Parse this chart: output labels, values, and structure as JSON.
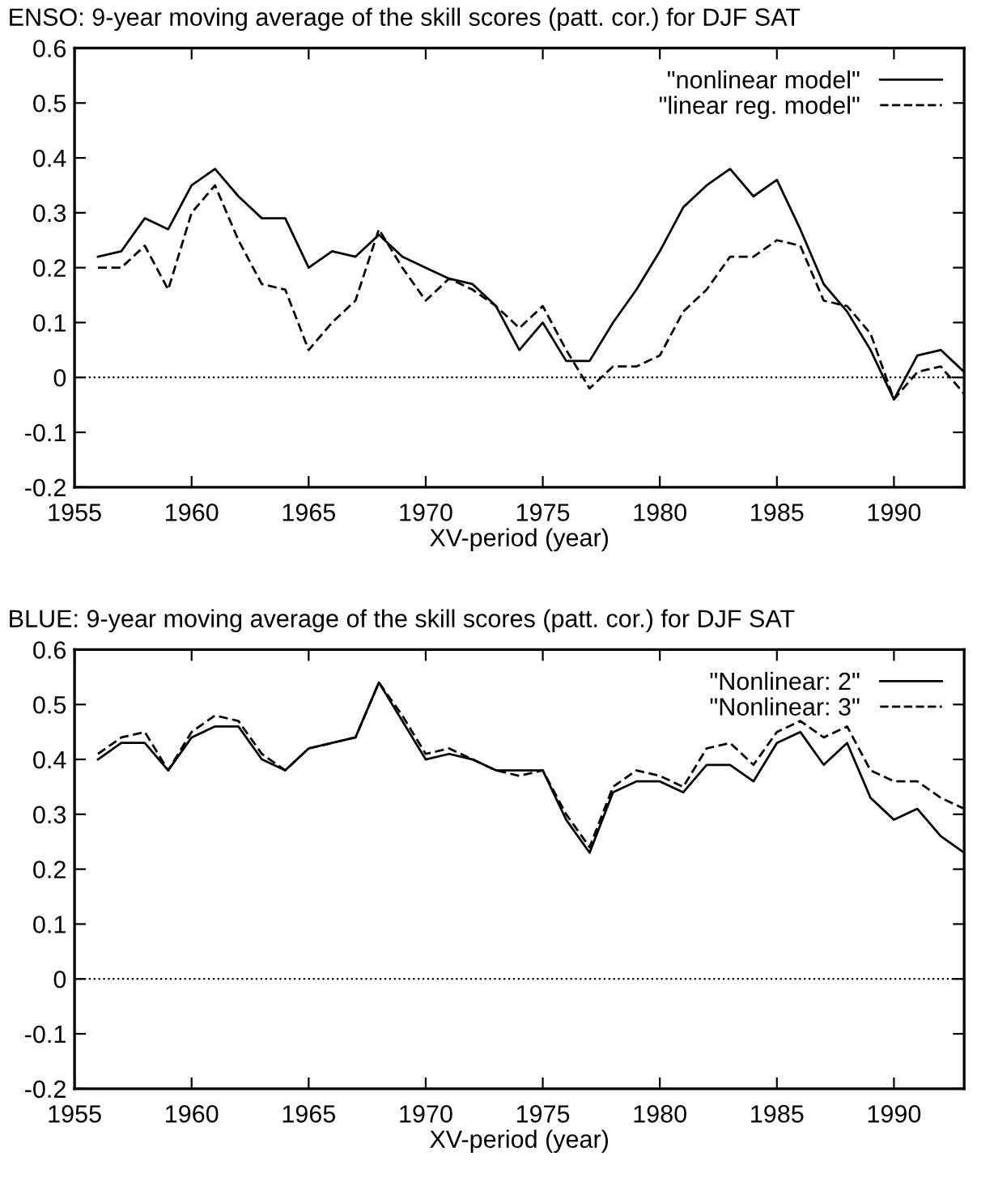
{
  "chart_data": [
    {
      "type": "line",
      "title": "ENSO: 9-year moving average of the skill scores (patt. cor.) for DJF SAT",
      "xlabel": "XV-period (year)",
      "x": [
        1956,
        1957,
        1958,
        1959,
        1960,
        1961,
        1962,
        1963,
        1964,
        1965,
        1966,
        1967,
        1968,
        1969,
        1970,
        1971,
        1972,
        1973,
        1974,
        1975,
        1976,
        1977,
        1978,
        1979,
        1980,
        1981,
        1982,
        1983,
        1984,
        1985,
        1986,
        1987,
        1988,
        1989,
        1990,
        1991,
        1992,
        1993
      ],
      "series": [
        {
          "name": "\"nonlinear model\"",
          "color": "#000000",
          "line_style": "solid",
          "values": [
            0.22,
            0.23,
            0.29,
            0.27,
            0.35,
            0.38,
            0.33,
            0.29,
            0.29,
            0.2,
            0.23,
            0.22,
            0.26,
            0.22,
            0.2,
            0.18,
            0.17,
            0.13,
            0.05,
            0.1,
            0.03,
            0.03,
            0.1,
            0.16,
            0.23,
            0.31,
            0.35,
            0.38,
            0.33,
            0.36,
            0.27,
            0.17,
            0.12,
            0.05,
            -0.04,
            0.04,
            0.05,
            0.01
          ]
        },
        {
          "name": "\"linear reg. model\"",
          "color": "#000000",
          "line_style": "dashed",
          "values": [
            0.2,
            0.2,
            0.24,
            0.16,
            0.3,
            0.35,
            0.25,
            0.17,
            0.16,
            0.05,
            0.1,
            0.14,
            0.27,
            0.2,
            0.14,
            0.18,
            0.16,
            0.13,
            0.09,
            0.13,
            0.05,
            -0.02,
            0.02,
            0.02,
            0.04,
            0.12,
            0.16,
            0.22,
            0.22,
            0.25,
            0.24,
            0.14,
            0.13,
            0.08,
            -0.04,
            0.01,
            0.02,
            -0.03
          ]
        }
      ],
      "xlim": [
        1955,
        1993
      ],
      "xticks": [
        1955,
        1960,
        1965,
        1970,
        1975,
        1980,
        1985,
        1990
      ],
      "ylim": [
        -0.2,
        0.6
      ],
      "yticks": [
        -0.2,
        -0.1,
        0,
        0.1,
        0.2,
        0.3,
        0.4,
        0.5,
        0.6
      ],
      "ref_lines": [
        {
          "axis": "y",
          "value": 0,
          "line_style": "dotted",
          "color": "#000000"
        }
      ],
      "grid": false,
      "legend": "top right"
    },
    {
      "type": "line",
      "title": "BLUE: 9-year moving average of the skill scores (patt. cor.) for DJF SAT",
      "xlabel": "XV-period (year)",
      "x": [
        1956,
        1957,
        1958,
        1959,
        1960,
        1961,
        1962,
        1963,
        1964,
        1965,
        1966,
        1967,
        1968,
        1969,
        1970,
        1971,
        1972,
        1973,
        1974,
        1975,
        1976,
        1977,
        1978,
        1979,
        1980,
        1981,
        1982,
        1983,
        1984,
        1985,
        1986,
        1987,
        1988,
        1989,
        1990,
        1991,
        1992,
        1993
      ],
      "series": [
        {
          "name": "\"Nonlinear: 2\"",
          "color": "#000000",
          "line_style": "solid",
          "values": [
            0.4,
            0.43,
            0.43,
            0.38,
            0.44,
            0.46,
            0.46,
            0.4,
            0.38,
            0.42,
            0.43,
            0.44,
            0.54,
            0.47,
            0.4,
            0.41,
            0.4,
            0.38,
            0.38,
            0.38,
            0.29,
            0.23,
            0.34,
            0.36,
            0.36,
            0.34,
            0.39,
            0.39,
            0.36,
            0.43,
            0.45,
            0.39,
            0.43,
            0.33,
            0.29,
            0.31,
            0.26,
            0.23
          ]
        },
        {
          "name": "\"Nonlinear: 3\"",
          "color": "#000000",
          "line_style": "dashed",
          "values": [
            0.41,
            0.44,
            0.45,
            0.38,
            0.45,
            0.48,
            0.47,
            0.41,
            0.38,
            0.42,
            0.43,
            0.44,
            0.54,
            0.48,
            0.41,
            0.42,
            0.4,
            0.38,
            0.37,
            0.38,
            0.3,
            0.24,
            0.35,
            0.38,
            0.37,
            0.35,
            0.42,
            0.43,
            0.39,
            0.45,
            0.47,
            0.44,
            0.46,
            0.38,
            0.36,
            0.36,
            0.33,
            0.31
          ]
        }
      ],
      "xlim": [
        1955,
        1993
      ],
      "xticks": [
        1955,
        1960,
        1965,
        1970,
        1975,
        1980,
        1985,
        1990
      ],
      "ylim": [
        -0.2,
        0.6
      ],
      "yticks": [
        -0.2,
        -0.1,
        0,
        0.1,
        0.2,
        0.3,
        0.4,
        0.5,
        0.6
      ],
      "ref_lines": [
        {
          "axis": "y",
          "value": 0,
          "line_style": "dotted",
          "color": "#000000"
        }
      ],
      "grid": false,
      "legend": "top right"
    }
  ]
}
